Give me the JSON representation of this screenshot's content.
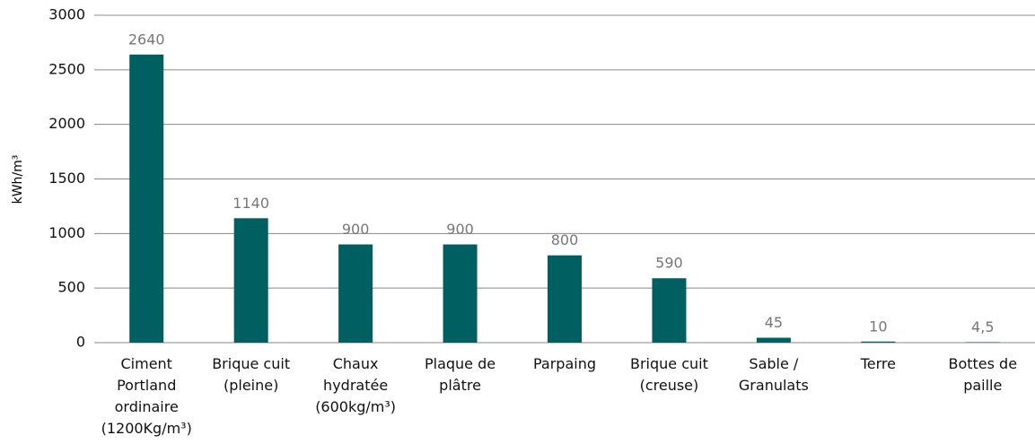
{
  "chart_data": {
    "type": "bar",
    "y_label": "kWh/m³",
    "categories": [
      "Ciment\nPortland\nordinaire\n(1200Kg/m³)",
      "Brique cuit\n(pleine)",
      "Chaux\nhydratée\n(600kg/m³)",
      "Plaque de\nplâtre",
      "Parpaing",
      "Brique cuit\n(creuse)",
      "Sable /\nGranulats",
      "Terre",
      "Bottes de\npaille"
    ],
    "values": [
      2640,
      1140,
      900,
      900,
      800,
      590,
      45,
      10,
      4.5
    ],
    "value_labels": [
      "2640",
      "1140",
      "900",
      "900",
      "800",
      "590",
      "45",
      "10",
      "4,5"
    ],
    "color": "#005f60",
    "ylim": [
      0,
      3000
    ],
    "yticks": [
      0,
      500,
      1000,
      1500,
      2000,
      2500,
      3000
    ],
    "grid": true
  }
}
